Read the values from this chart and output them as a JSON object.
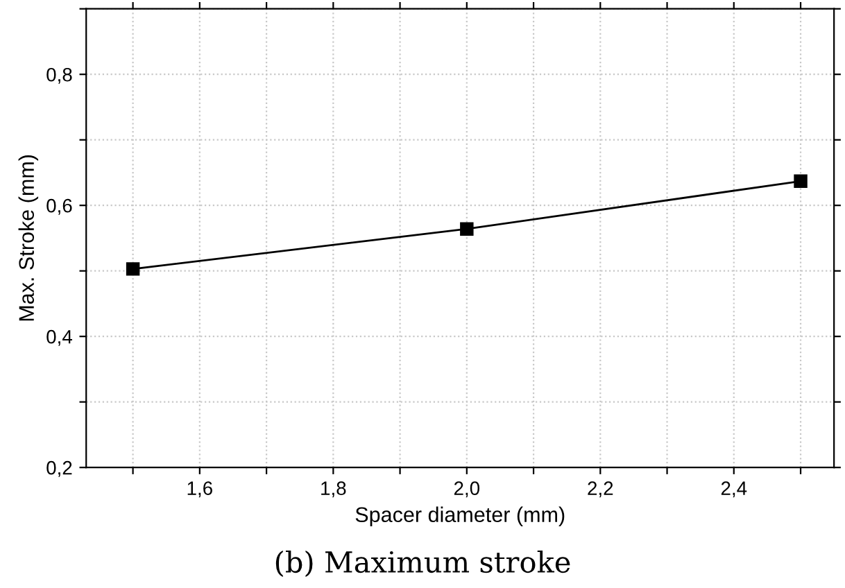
{
  "chart_data": {
    "type": "line",
    "xlabel": "Spacer diameter (mm)",
    "ylabel": "Max. Stroke (mm)",
    "annotations": [
      "(b) Maximum stroke"
    ],
    "x": [
      1.5,
      2.0,
      2.5
    ],
    "series": [
      {
        "color": "#000000",
        "values": [
          0.503,
          0.564,
          0.637
        ]
      }
    ],
    "marker": "square",
    "line_style": "solid",
    "grid": true,
    "legend": false,
    "xlim": [
      1.43,
      2.55
    ],
    "xticks": [
      {
        "value": 1.5,
        "label": null
      },
      {
        "value": 1.6,
        "label": "1,6"
      },
      {
        "value": 1.7,
        "label": null
      },
      {
        "value": 1.8,
        "label": "1,8"
      },
      {
        "value": 1.9,
        "label": null
      },
      {
        "value": 2.0,
        "label": "2,0"
      },
      {
        "value": 2.1,
        "label": null
      },
      {
        "value": 2.2,
        "label": "2,2"
      },
      {
        "value": 2.3,
        "label": null
      },
      {
        "value": 2.4,
        "label": "2,4"
      },
      {
        "value": 2.5,
        "label": null
      }
    ],
    "ylim": [
      0.2,
      0.9
    ],
    "yticks": [
      {
        "value": 0.2,
        "label": "0,2"
      },
      {
        "value": 0.3,
        "label": null
      },
      {
        "value": 0.4,
        "label": "0,4"
      },
      {
        "value": 0.5,
        "label": null
      },
      {
        "value": 0.6,
        "label": "0,6"
      },
      {
        "value": 0.7,
        "label": null
      },
      {
        "value": 0.8,
        "label": "0,8"
      },
      {
        "value": 0.9,
        "label": null
      }
    ]
  }
}
